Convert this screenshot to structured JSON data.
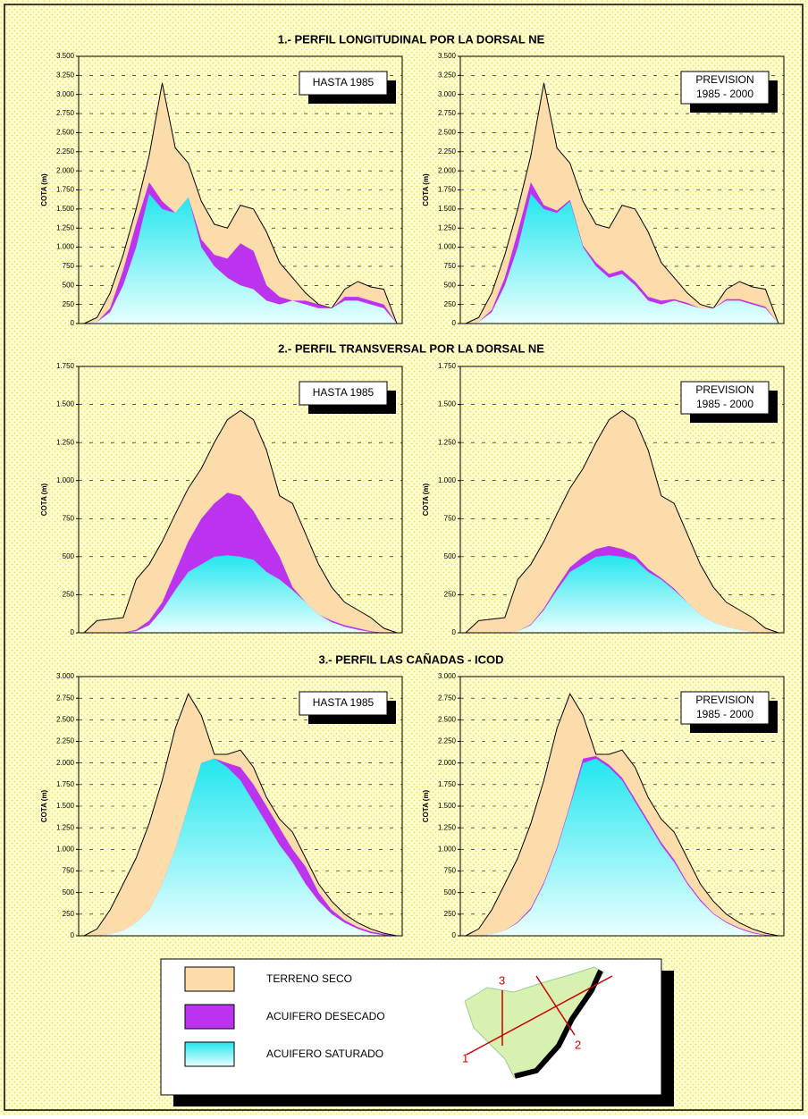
{
  "sections": [
    "1.- PERFIL LONGITUDINAL POR LA DORSAL NE",
    "2.- PERFIL TRANSVERSAL POR LA DORSAL NE",
    "3.- PERFIL LAS CAÑADAS - ICOD"
  ],
  "map": {
    "labels": [
      "1",
      "2",
      "3"
    ]
  },
  "chart_data": [
    {
      "type": "area",
      "section": 0,
      "ylabel": "COTA (m)",
      "annotation": [
        "HASTA 1985"
      ],
      "ylim": [
        0,
        3500
      ],
      "yticks": [
        0,
        250,
        500,
        750,
        {
          "value": 1000,
          "label": "1.000"
        },
        {
          "value": 1250,
          "label": "1.250"
        },
        {
          "value": 1500,
          "label": "1.500"
        },
        {
          "value": 1750,
          "label": "1.750"
        },
        {
          "value": 2000,
          "label": "2.000"
        },
        {
          "value": 2250,
          "label": "2.250"
        },
        {
          "value": 2500,
          "label": "2.500"
        },
        {
          "value": 2750,
          "label": "2.750"
        },
        {
          "value": 3000,
          "label": "3.000"
        },
        {
          "value": 3250,
          "label": "3.250"
        },
        {
          "value": 3500,
          "label": "3.500"
        }
      ],
      "series": [
        {
          "name": "TERRENO SECO",
          "color": "#fbdcaa",
          "values": [
            0,
            80,
            400,
            900,
            1500,
            2200,
            3150,
            2300,
            2100,
            1600,
            1300,
            1250,
            1550,
            1500,
            1200,
            800,
            600,
            400,
            250,
            200,
            450,
            550,
            480,
            450,
            0
          ]
        },
        {
          "name": "ACUIFERO DESECADO",
          "color": "#bb33ee",
          "values": [
            0,
            20,
            200,
            700,
            1300,
            1850,
            1600,
            1450,
            1650,
            1100,
            900,
            850,
            1050,
            950,
            500,
            350,
            300,
            300,
            250,
            200,
            350,
            350,
            300,
            250,
            0
          ]
        },
        {
          "name": "ACUIFERO SATURADO",
          "color": "#22e6ee",
          "values": [
            0,
            20,
            150,
            500,
            1000,
            1700,
            1500,
            1450,
            1650,
            1000,
            750,
            600,
            500,
            450,
            300,
            250,
            300,
            250,
            200,
            200,
            300,
            300,
            250,
            200,
            0
          ]
        }
      ]
    },
    {
      "type": "area",
      "section": 0,
      "ylabel": "COTA (m)",
      "annotation": [
        "PREVISION",
        "1985 - 2000"
      ],
      "ylim": [
        0,
        3500
      ],
      "yticks": [
        0,
        250,
        500,
        750,
        {
          "value": 1000,
          "label": "1.000"
        },
        {
          "value": 1250,
          "label": "1.250"
        },
        {
          "value": 1500,
          "label": "1.500"
        },
        {
          "value": 1750,
          "label": "1.750"
        },
        {
          "value": 2000,
          "label": "2.000"
        },
        {
          "value": 2250,
          "label": "2.250"
        },
        {
          "value": 2500,
          "label": "2.500"
        },
        {
          "value": 2750,
          "label": "2.750"
        },
        {
          "value": 3000,
          "label": "3.000"
        },
        {
          "value": 3250,
          "label": "3.250"
        },
        {
          "value": 3500,
          "label": "3.500"
        }
      ],
      "series": [
        {
          "color": "#fbdcaa",
          "values": [
            0,
            80,
            400,
            900,
            1500,
            2200,
            3150,
            2300,
            2100,
            1600,
            1300,
            1250,
            1550,
            1500,
            1200,
            800,
            600,
            400,
            250,
            200,
            450,
            550,
            480,
            450,
            0
          ]
        },
        {
          "color": "#bb33ee",
          "values": [
            0,
            20,
            180,
            600,
            1200,
            1850,
            1550,
            1480,
            1620,
            1020,
            800,
            650,
            700,
            550,
            350,
            300,
            320,
            270,
            200,
            200,
            320,
            320,
            270,
            220,
            0
          ]
        },
        {
          "color": "#22e6ee",
          "values": [
            0,
            20,
            150,
            500,
            1000,
            1700,
            1500,
            1450,
            1600,
            1000,
            750,
            600,
            650,
            500,
            300,
            250,
            300,
            250,
            200,
            200,
            300,
            300,
            250,
            200,
            0
          ]
        }
      ]
    },
    {
      "type": "area",
      "section": 1,
      "ylabel": "COTA (m)",
      "annotation": [
        "HASTA 1985"
      ],
      "ylim": [
        0,
        1750
      ],
      "yticks": [
        0,
        250,
        500,
        750,
        {
          "value": 1000,
          "label": "1.000"
        },
        {
          "value": 1250,
          "label": "1.250"
        },
        {
          "value": 1500,
          "label": "1.500"
        },
        {
          "value": 1750,
          "label": "1.750"
        }
      ],
      "series": [
        {
          "color": "#fbdcaa",
          "values": [
            0,
            80,
            90,
            100,
            350,
            450,
            600,
            780,
            950,
            1080,
            1250,
            1400,
            1460,
            1400,
            1200,
            900,
            850,
            650,
            450,
            300,
            200,
            150,
            100,
            30,
            0
          ]
        },
        {
          "color": "#bb33ee",
          "values": [
            0,
            0,
            0,
            0,
            20,
            80,
            200,
            400,
            600,
            750,
            850,
            920,
            900,
            800,
            650,
            500,
            300,
            200,
            120,
            80,
            50,
            30,
            10,
            0,
            0
          ]
        },
        {
          "color": "#22e6ee",
          "values": [
            0,
            0,
            0,
            0,
            10,
            50,
            150,
            280,
            400,
            450,
            500,
            510,
            500,
            480,
            400,
            350,
            280,
            200,
            120,
            70,
            40,
            20,
            5,
            0,
            0
          ]
        }
      ]
    },
    {
      "type": "area",
      "section": 1,
      "ylabel": "COTA (m)",
      "annotation": [
        "PREVISION",
        "1985 - 2000"
      ],
      "ylim": [
        0,
        1750
      ],
      "yticks": [
        0,
        250,
        500,
        750,
        {
          "value": 1000,
          "label": "1.000"
        },
        {
          "value": 1250,
          "label": "1.250"
        },
        {
          "value": 1500,
          "label": "1.500"
        },
        {
          "value": 1750,
          "label": "1.750"
        }
      ],
      "series": [
        {
          "color": "#fbdcaa",
          "values": [
            0,
            80,
            90,
            100,
            350,
            450,
            600,
            780,
            950,
            1080,
            1250,
            1400,
            1460,
            1400,
            1200,
            900,
            850,
            650,
            450,
            300,
            200,
            150,
            100,
            30,
            0
          ]
        },
        {
          "color": "#bb33ee",
          "values": [
            0,
            0,
            0,
            0,
            10,
            55,
            160,
            300,
            430,
            500,
            550,
            570,
            550,
            510,
            420,
            360,
            290,
            200,
            120,
            70,
            40,
            20,
            5,
            0,
            0
          ]
        },
        {
          "color": "#22e6ee",
          "values": [
            0,
            0,
            0,
            0,
            10,
            50,
            150,
            280,
            400,
            450,
            500,
            510,
            500,
            480,
            400,
            350,
            280,
            200,
            120,
            70,
            40,
            20,
            5,
            0,
            0
          ]
        }
      ]
    },
    {
      "type": "area",
      "section": 2,
      "ylabel": "COTA (m)",
      "annotation": [
        "HASTA 1985"
      ],
      "ylim": [
        0,
        3000
      ],
      "yticks": [
        0,
        250,
        500,
        750,
        {
          "value": 1000,
          "label": "1.000"
        },
        {
          "value": 1250,
          "label": "1.250"
        },
        {
          "value": 1500,
          "label": "1.500"
        },
        {
          "value": 1750,
          "label": "1.750"
        },
        {
          "value": 2000,
          "label": "2.000"
        },
        {
          "value": 2250,
          "label": "2.250"
        },
        {
          "value": 2500,
          "label": "2.500"
        },
        {
          "value": 2750,
          "label": "2.750"
        },
        {
          "value": 3000,
          "label": "3.000"
        }
      ],
      "series": [
        {
          "color": "#fbdcaa",
          "values": [
            0,
            80,
            300,
            600,
            900,
            1300,
            1800,
            2400,
            2800,
            2550,
            2100,
            2100,
            2150,
            1950,
            1600,
            1350,
            1200,
            900,
            600,
            400,
            250,
            150,
            80,
            30,
            0
          ]
        },
        {
          "color": "#bb33ee",
          "values": [
            0,
            0,
            20,
            60,
            150,
            300,
            600,
            1000,
            1500,
            2000,
            2050,
            2000,
            1950,
            1750,
            1500,
            1250,
            1000,
            800,
            500,
            300,
            180,
            100,
            50,
            20,
            0
          ]
        },
        {
          "color": "#22e6ee",
          "values": [
            0,
            0,
            20,
            60,
            150,
            300,
            600,
            1000,
            1500,
            2000,
            2050,
            1950,
            1800,
            1550,
            1300,
            1050,
            850,
            600,
            400,
            250,
            150,
            80,
            30,
            5,
            0
          ]
        }
      ]
    },
    {
      "type": "area",
      "section": 2,
      "ylabel": "COTA (m)",
      "annotation": [
        "PREVISION",
        "1985 - 2000"
      ],
      "ylim": [
        0,
        3000
      ],
      "yticks": [
        0,
        250,
        500,
        750,
        {
          "value": 1000,
          "label": "1.000"
        },
        {
          "value": 1250,
          "label": "1.250"
        },
        {
          "value": 1500,
          "label": "1.500"
        },
        {
          "value": 1750,
          "label": "1.750"
        },
        {
          "value": 2000,
          "label": "2.000"
        },
        {
          "value": 2250,
          "label": "2.250"
        },
        {
          "value": 2500,
          "label": "2.500"
        },
        {
          "value": 2750,
          "label": "2.750"
        },
        {
          "value": 3000,
          "label": "3.000"
        }
      ],
      "series": [
        {
          "color": "#fbdcaa",
          "values": [
            0,
            80,
            300,
            600,
            900,
            1300,
            1800,
            2400,
            2800,
            2550,
            2100,
            2100,
            2150,
            1950,
            1600,
            1350,
            1200,
            900,
            600,
            400,
            250,
            150,
            80,
            30,
            0
          ]
        },
        {
          "color": "#bb33ee",
          "values": [
            0,
            0,
            20,
            60,
            160,
            320,
            620,
            1020,
            1520,
            2050,
            2080,
            1980,
            1830,
            1580,
            1330,
            1080,
            880,
            620,
            420,
            260,
            160,
            90,
            40,
            10,
            0
          ]
        },
        {
          "color": "#22e6ee",
          "values": [
            0,
            0,
            20,
            60,
            150,
            300,
            600,
            1000,
            1500,
            2000,
            2050,
            1950,
            1800,
            1550,
            1300,
            1050,
            850,
            600,
            400,
            250,
            150,
            80,
            30,
            5,
            0
          ]
        }
      ]
    }
  ]
}
